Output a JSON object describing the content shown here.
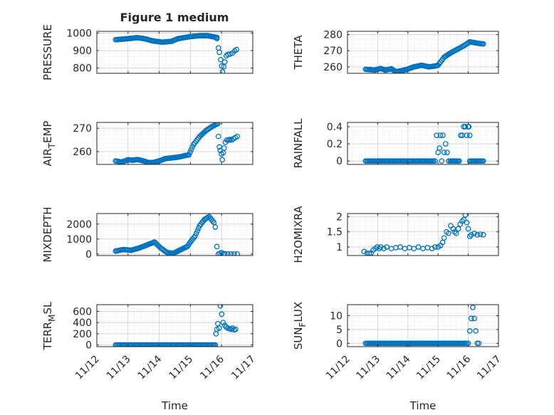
{
  "figure": {
    "title": "Figure 1 medium",
    "marker_color": "#0072BD",
    "axis_color": "#262626",
    "grid_color": "#d9d9d9"
  },
  "chart_data": [
    {
      "type": "scatter",
      "name": "pressure",
      "ylabel": "PRESSURE",
      "ylabel_parts": [
        [
          "PRESSURE",
          ""
        ]
      ],
      "xlabel": "",
      "xlim": [
        12,
        17
      ],
      "ylim": [
        770,
        1010
      ],
      "yticks": [
        800,
        900,
        1000
      ],
      "yticklabels": [
        "800",
        "900",
        "1000"
      ],
      "xticks": [
        12,
        13,
        14,
        15,
        16,
        17
      ],
      "xticklabels": [],
      "series": [
        {
          "name": "PRESSURE",
          "mode": "dense",
          "x": [
            12.6,
            13.0,
            13.3,
            13.55,
            13.8,
            14.1,
            14.4,
            14.6,
            15.0,
            15.3,
            15.55,
            15.85
          ],
          "y": [
            962,
            968,
            974,
            967,
            955,
            948,
            953,
            968,
            980,
            985,
            985,
            975
          ]
        },
        {
          "name": "PRESSURE-scatter",
          "mode": "points",
          "x": [
            15.85,
            15.9,
            15.93,
            15.97,
            16.0,
            16.03,
            16.07,
            16.1,
            16.15,
            16.2,
            16.27,
            16.35,
            16.42,
            16.48
          ],
          "y": [
            968,
            915,
            890,
            848,
            812,
            778,
            808,
            835,
            870,
            878,
            880,
            885,
            898,
            906
          ]
        }
      ]
    },
    {
      "type": "scatter",
      "name": "theta",
      "ylabel": "THETA",
      "ylabel_parts": [
        [
          "THETA",
          ""
        ]
      ],
      "xlabel": "",
      "xlim": [
        12,
        17
      ],
      "ylim": [
        256,
        282
      ],
      "yticks": [
        260,
        270,
        280
      ],
      "yticklabels": [
        "260",
        "270",
        "280"
      ],
      "xticks": [
        12,
        13,
        14,
        15,
        16,
        17
      ],
      "xticklabels": [],
      "series": [
        {
          "name": "THETA",
          "mode": "dense",
          "x": [
            12.6,
            12.9,
            13.1,
            13.25,
            13.45,
            13.6,
            13.75,
            13.95,
            14.2,
            14.45,
            14.7,
            14.9,
            15.0,
            15.2,
            15.45,
            15.65,
            15.85,
            16.05,
            16.2,
            16.35,
            16.5
          ],
          "y": [
            258.5,
            258.0,
            259.0,
            258.0,
            258.8,
            257.0,
            257.5,
            258.3,
            260.0,
            261.0,
            260.0,
            260.5,
            261.0,
            266.0,
            269.0,
            271.0,
            273.0,
            275.5,
            275.0,
            274.5,
            274.2
          ]
        }
      ]
    },
    {
      "type": "scatter",
      "name": "air-temp",
      "ylabel": "AIR_TEMP",
      "ylabel_parts": [
        [
          "AIR",
          ""
        ],
        [
          "T",
          "sub"
        ],
        [
          "EMP",
          ""
        ]
      ],
      "xlabel": "",
      "xlim": [
        12,
        17
      ],
      "ylim": [
        254.5,
        272.5
      ],
      "yticks": [
        260,
        270
      ],
      "yticklabels": [
        "260",
        "270"
      ],
      "xticks": [
        12,
        13,
        14,
        15,
        16,
        17
      ],
      "xticklabels": [],
      "series": [
        {
          "name": "AIR_TEMP",
          "mode": "dense",
          "x": [
            12.6,
            12.8,
            13.0,
            13.15,
            13.3,
            13.5,
            13.65,
            13.8,
            14.0,
            14.2,
            14.4,
            14.6,
            14.8,
            14.95,
            15.1,
            15.3,
            15.5,
            15.7,
            15.88
          ],
          "y": [
            256.0,
            255.5,
            256.5,
            256.3,
            256.6,
            256.0,
            255.3,
            255.3,
            256.0,
            257.0,
            257.3,
            257.6,
            258.2,
            258.6,
            263.0,
            266.5,
            269.0,
            270.8,
            272.0
          ]
        },
        {
          "name": "AIR_TEMP-scatter",
          "mode": "points",
          "x": [
            15.9,
            15.93,
            15.96,
            15.99,
            16.02,
            16.05,
            16.08,
            16.12,
            16.17,
            16.22,
            16.27,
            16.32,
            16.38,
            16.44,
            16.5
          ],
          "y": [
            266.5,
            262.0,
            260.5,
            259.0,
            256.5,
            259.5,
            261.5,
            264.0,
            265.0,
            264.8,
            265.2,
            265.0,
            265.5,
            266.0,
            266.5
          ]
        }
      ]
    },
    {
      "type": "scatter",
      "name": "rainfall",
      "ylabel": "RAINFALL",
      "ylabel_parts": [
        [
          "RAINFALL",
          ""
        ]
      ],
      "xlabel": "",
      "xlim": [
        12,
        17
      ],
      "ylim": [
        -0.04,
        0.45
      ],
      "yticks": [
        0,
        0.2,
        0.4
      ],
      "yticklabels": [
        "0",
        "0.2",
        "0.4"
      ],
      "xticks": [
        12,
        13,
        14,
        15,
        16,
        17
      ],
      "xticklabels": [],
      "series": [
        {
          "name": "RAINFALL",
          "mode": "dense",
          "x": [
            12.6,
            14.85
          ],
          "y": [
            0,
            0
          ]
        },
        {
          "name": "RAINFALL-2",
          "mode": "dense",
          "x": [
            15.4,
            15.7
          ],
          "y": [
            0,
            0
          ]
        },
        {
          "name": "RAINFALL-3",
          "mode": "dense",
          "x": [
            16.05,
            16.5
          ],
          "y": [
            0,
            0
          ]
        },
        {
          "name": "RAINFALL-scatter",
          "mode": "points",
          "x": [
            14.9,
            14.95,
            15.0,
            15.05,
            15.08,
            15.12,
            15.16,
            15.2,
            15.25,
            15.3,
            15.35,
            15.75,
            15.8,
            15.85,
            15.9,
            15.95,
            16.0,
            16.02,
            16.05
          ],
          "y": [
            0,
            0.3,
            0.1,
            0.15,
            0.3,
            0,
            0.3,
            0.1,
            0.2,
            0.1,
            0,
            0.3,
            0.3,
            0.4,
            0.4,
            0.3,
            0.4,
            0.4,
            0.3
          ]
        }
      ]
    },
    {
      "type": "scatter",
      "name": "mixdepth",
      "ylabel": "MIXDEPTH",
      "ylabel_parts": [
        [
          "MIXDEPTH",
          ""
        ]
      ],
      "xlabel": "",
      "xlim": [
        12,
        17
      ],
      "ylim": [
        -100,
        2700
      ],
      "yticks": [
        0,
        1000,
        2000
      ],
      "yticklabels": [
        "0",
        "1000",
        "2000"
      ],
      "xticks": [
        12,
        13,
        14,
        15,
        16,
        17
      ],
      "xticklabels": [],
      "series": [
        {
          "name": "MIXDEPTH",
          "mode": "dense",
          "x": [
            12.6,
            12.85,
            13.1,
            13.35,
            13.6,
            13.85,
            14.05,
            14.25,
            14.45,
            14.6,
            14.75,
            14.9,
            15.0,
            15.15,
            15.3,
            15.45,
            15.6,
            15.75
          ],
          "y": [
            200,
            300,
            250,
            400,
            600,
            800,
            400,
            100,
            50,
            200,
            350,
            500,
            800,
            1200,
            1900,
            2300,
            2500,
            2100
          ]
        },
        {
          "name": "MIXDEPTH-scatter",
          "mode": "points",
          "x": [
            15.8,
            15.85,
            15.9,
            15.95,
            16.0,
            16.05,
            16.1,
            16.2,
            16.3,
            16.4,
            16.5
          ],
          "y": [
            1800,
            500,
            0,
            50,
            100,
            0,
            20,
            0,
            0,
            0,
            0
          ]
        }
      ]
    },
    {
      "type": "scatter",
      "name": "h2omixra",
      "ylabel": "H2OMIXRA",
      "ylabel_parts": [
        [
          "H2OMIXRA",
          ""
        ]
      ],
      "xlabel": "",
      "xlim": [
        12,
        17
      ],
      "ylim": [
        0.72,
        2.1
      ],
      "yticks": [
        1,
        1.5,
        2
      ],
      "yticklabels": [
        "1",
        "1.5",
        "2"
      ],
      "xticks": [
        12,
        13,
        14,
        15,
        16,
        17
      ],
      "xticklabels": [],
      "series": [
        {
          "name": "H2OMIXRA",
          "mode": "points",
          "x": [
            12.55,
            12.65,
            12.72,
            12.78,
            12.85,
            12.92,
            12.98,
            13.05,
            13.1,
            13.2,
            13.3,
            13.45,
            13.6,
            13.75,
            13.9,
            14.05,
            14.2,
            14.35,
            14.5,
            14.65,
            14.8,
            14.9,
            15.0,
            15.08,
            15.15,
            15.2,
            15.28,
            15.35,
            15.42,
            15.5,
            15.55,
            15.6,
            15.67,
            15.73,
            15.8,
            15.85,
            15.9,
            15.95,
            16.0,
            16.05,
            16.1,
            16.2,
            16.3,
            16.4,
            16.5
          ],
          "y": [
            0.85,
            0.8,
            0.78,
            0.8,
            0.9,
            0.95,
            1.0,
            0.95,
            1.0,
            0.95,
            1.0,
            0.95,
            0.98,
            1.0,
            0.95,
            0.98,
            0.95,
            1.0,
            0.95,
            0.98,
            0.95,
            1.0,
            1.0,
            1.05,
            1.15,
            1.3,
            1.5,
            1.45,
            1.7,
            1.6,
            1.5,
            1.45,
            1.6,
            1.75,
            1.85,
            1.9,
            2.05,
            1.8,
            1.6,
            1.35,
            1.4,
            1.45,
            1.4,
            1.42,
            1.4
          ]
        }
      ]
    },
    {
      "type": "scatter",
      "name": "terr-msl",
      "ylabel": "TERR_MSL",
      "ylabel_parts": [
        [
          "TERR",
          ""
        ],
        [
          "M",
          "sub"
        ],
        [
          "SL",
          ""
        ]
      ],
      "xlabel": "Time",
      "xlim": [
        12,
        17
      ],
      "ylim": [
        -30,
        720
      ],
      "yticks": [
        0,
        200,
        400,
        600
      ],
      "yticklabels": [
        "0",
        "200",
        "400",
        "600"
      ],
      "xticks": [
        12,
        13,
        14,
        15,
        16,
        17
      ],
      "xticklabels": [
        "11/12",
        "11/13",
        "11/14",
        "11/15",
        "11/16",
        "11/17"
      ],
      "series": [
        {
          "name": "TERR_MSL",
          "mode": "dense",
          "x": [
            12.6,
            15.8
          ],
          "y": [
            0,
            0
          ]
        },
        {
          "name": "TERR_MSL-scatter",
          "mode": "points",
          "x": [
            15.82,
            15.85,
            15.88,
            15.92,
            15.96,
            16.0,
            16.05,
            16.1,
            16.15,
            16.2,
            16.25,
            16.3,
            16.35,
            16.4,
            16.45
          ],
          "y": [
            200,
            280,
            380,
            300,
            700,
            550,
            400,
            350,
            320,
            300,
            290,
            280,
            300,
            270,
            280
          ]
        }
      ]
    },
    {
      "type": "scatter",
      "name": "sun-flux",
      "ylabel": "SUN_FLUX",
      "ylabel_parts": [
        [
          "SUN",
          ""
        ],
        [
          "F",
          "sub"
        ],
        [
          "LUX",
          ""
        ]
      ],
      "xlabel": "Time",
      "xlim": [
        12,
        17
      ],
      "ylim": [
        -1.2,
        14
      ],
      "yticks": [
        0,
        5,
        10
      ],
      "yticklabels": [
        "0",
        "5",
        "10"
      ],
      "xticks": [
        12,
        13,
        14,
        15,
        16,
        17
      ],
      "xticklabels": [
        "11/12",
        "11/13",
        "11/14",
        "11/15",
        "11/16",
        "11/17"
      ],
      "series": [
        {
          "name": "SUN_FLUX",
          "mode": "dense",
          "x": [
            12.6,
            15.9
          ],
          "y": [
            0,
            0
          ]
        },
        {
          "name": "SUN_FLUX-scatter",
          "mode": "points",
          "x": [
            14.0,
            15.95,
            16.0,
            16.05,
            16.1,
            16.15,
            16.2,
            16.25,
            16.3,
            16.35
          ],
          "y": [
            -0.5,
            0,
            0,
            4.5,
            9,
            13,
            9,
            4.5,
            0,
            0
          ]
        }
      ]
    }
  ]
}
